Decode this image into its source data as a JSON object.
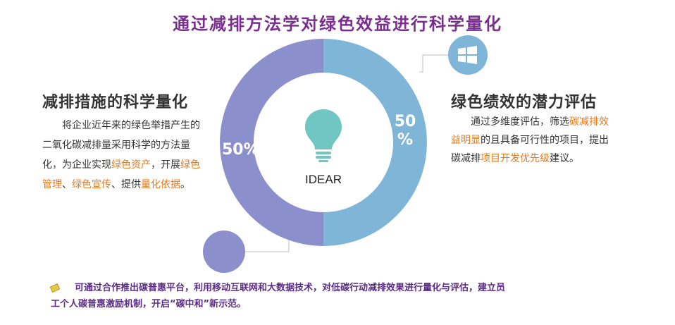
{
  "title": "通过减排方法学对绿色效益进行科学量化",
  "center_label": "IDEAR",
  "ring": {
    "left_percent": "50%",
    "right_percent_top": "50",
    "right_percent_bottom": "%",
    "left_color": "#8b8fcc",
    "right_color": "#7fb6d8"
  },
  "left_panel": {
    "heading": "减排措施的科学量化",
    "body_1": "将企业近年来的绿色举措产生的二氧化碳减排量采用科学的方法量化，为企业实现",
    "hl_1": "绿色资产",
    "body_2": "，开展",
    "hl_2": "绿色管理",
    "body_3": "、",
    "hl_3": "绿色宣传",
    "body_4": "、提供",
    "hl_4": "量化依据",
    "body_5": "。"
  },
  "right_panel": {
    "heading": "绿色绩效的潜力评估",
    "body_1": "通过多维度评估，筛选",
    "hl_1": "碳减排效益明显",
    "body_2": "的且具备可行性的项目，提出碳减排",
    "hl_2": "项目开发优先级",
    "body_3": "建议。"
  },
  "bottom_note": "可通过合作推出碳普惠平台，利用移动互联网和大数据技术，对低碳行动减排效果进行量化与评估，建立员工个人碳普惠激励机制，开启“碳中和”新示范。",
  "icons": {
    "center": "lightbulb-icon",
    "top_right": "windows-logo-icon",
    "bottom_left": "plain-circle",
    "note": "pencil-icon"
  },
  "colors": {
    "title": "#7a2f8f",
    "highlight": "#e57a1f",
    "note": "#5b2c83",
    "bulb": "#6fc6c2"
  }
}
